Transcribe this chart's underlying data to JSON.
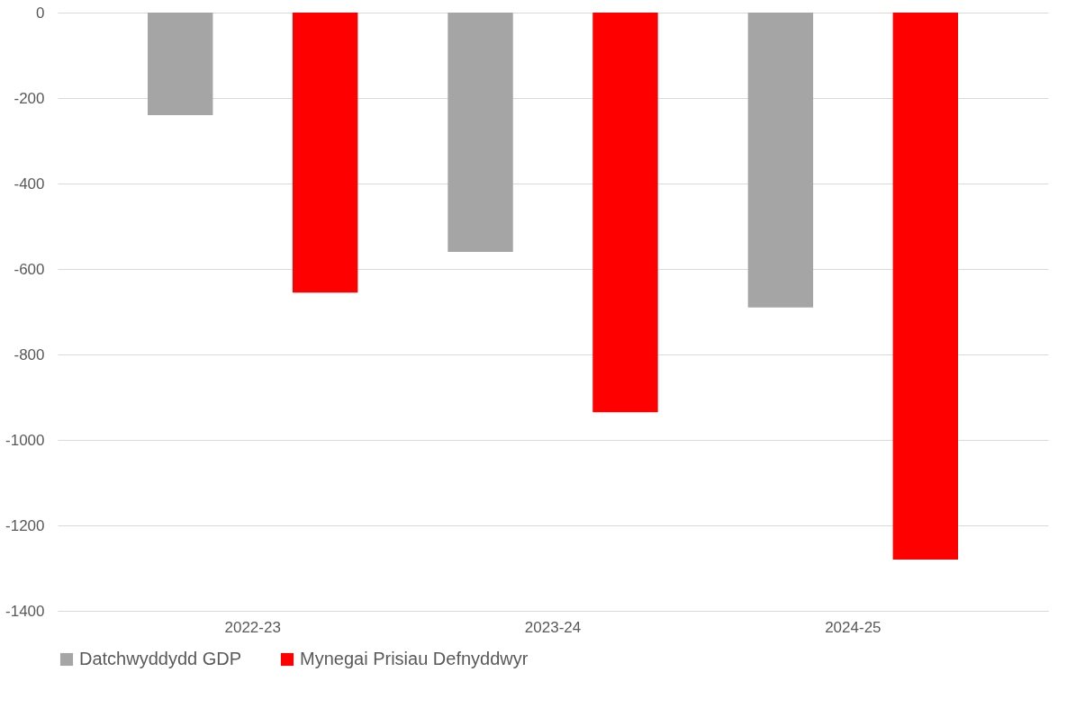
{
  "chart_data": {
    "type": "bar",
    "categories": [
      "2022-23",
      "2023-24",
      "2024-25"
    ],
    "series": [
      {
        "name": "Datchwyddydd GDP",
        "color": "#a5a5a5",
        "values": [
          -240,
          -560,
          -690
        ]
      },
      {
        "name": "Mynegai Prisiau Defnyddwyr",
        "color": "#ff0000",
        "values": [
          -655,
          -935,
          -1280
        ]
      }
    ],
    "ylim": [
      -1400,
      0
    ],
    "yticks": [
      0,
      -200,
      -400,
      -600,
      -800,
      -1000,
      -1200,
      -1400
    ],
    "grid": "y",
    "legend": "bottom"
  }
}
